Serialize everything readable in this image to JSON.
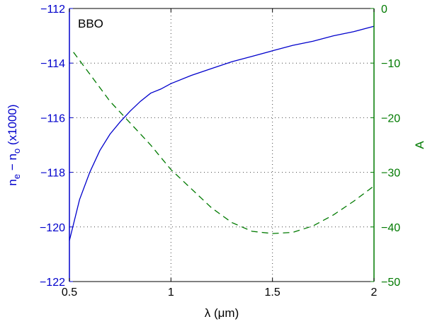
{
  "chart_data": {
    "type": "line",
    "annotation": "BBO",
    "xlabel": "λ (μm)",
    "ylabel_left": {
      "main": "n",
      "sub1": "e",
      "mid": " − n",
      "sub2": "o",
      "tail": " (x1000)"
    },
    "ylabel_right": "A",
    "xlim": [
      0.5,
      2
    ],
    "ylim_left": [
      -122,
      -112
    ],
    "ylim_right": [
      -50,
      0
    ],
    "xticks": [
      0.5,
      1,
      1.5,
      2
    ],
    "xtick_labels": [
      "0.5",
      "1",
      "1.5",
      "2"
    ],
    "yticks_left": [
      -122,
      -120,
      -118,
      -116,
      -114,
      -112
    ],
    "ytick_labels_left": [
      "−122",
      "−120",
      "−118",
      "−116",
      "−114",
      "−112"
    ],
    "yticks_right": [
      -50,
      -40,
      -30,
      -20,
      -10,
      0
    ],
    "ytick_labels_right": [
      "−50",
      "−40",
      "−30",
      "−20",
      "−10",
      "0"
    ],
    "grid": true,
    "colors": {
      "left": "#0000cc",
      "right": "#007a00"
    },
    "series": [
      {
        "axis": "left",
        "style": "solid",
        "x": [
          0.5,
          0.55,
          0.6,
          0.65,
          0.7,
          0.75,
          0.8,
          0.85,
          0.9,
          0.95,
          1.0,
          1.1,
          1.2,
          1.3,
          1.4,
          1.5,
          1.6,
          1.7,
          1.8,
          1.9,
          2.0
        ],
        "y": [
          -120.5,
          -119.0,
          -118.0,
          -117.2,
          -116.6,
          -116.15,
          -115.75,
          -115.4,
          -115.1,
          -114.95,
          -114.75,
          -114.45,
          -114.2,
          -113.95,
          -113.75,
          -113.55,
          -113.35,
          -113.2,
          -113.0,
          -112.85,
          -112.65
        ]
      },
      {
        "axis": "right",
        "style": "dashed",
        "x": [
          0.52,
          0.6,
          0.7,
          0.8,
          0.9,
          1.0,
          1.1,
          1.2,
          1.3,
          1.4,
          1.5,
          1.6,
          1.7,
          1.8,
          1.9,
          2.0
        ],
        "y": [
          -8,
          -12,
          -17,
          -21,
          -25,
          -29.5,
          -33,
          -36.5,
          -39.2,
          -40.8,
          -41.2,
          -41,
          -39.8,
          -37.8,
          -35.3,
          -32.5
        ]
      }
    ]
  }
}
